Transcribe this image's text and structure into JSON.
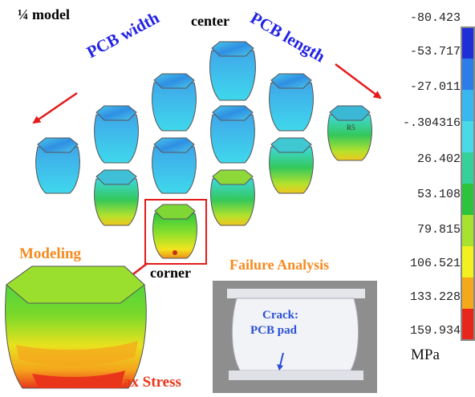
{
  "labels": {
    "quarter_model": "¼ model",
    "center": "center",
    "pcb_width": "PCB width",
    "pcb_length": "PCB length",
    "corner": "corner",
    "modeling": "Modeling",
    "failure_analysis": "Failure Analysis",
    "crack": "Crack:",
    "pcb_pad": "PCB pad",
    "max_stress": "Max Stress",
    "unit": "MPa",
    "chip_mark": "R5"
  },
  "legend": {
    "values": [
      "-80.423",
      "-53.717",
      "-27.011",
      "-.304316",
      "26.402",
      "53.108",
      "79.815",
      "106.521",
      "133.228",
      "159.934"
    ],
    "colors": [
      "#1f2fd8",
      "#2c7de8",
      "#38b8ee",
      "#4ad9e6",
      "#36d19a",
      "#2bc43c",
      "#a7e22e",
      "#f2f01e",
      "#f4a81c",
      "#e8271b"
    ]
  },
  "colors": {
    "orange_label": "#f58a1f",
    "blue_label": "#2323e6",
    "red_arrow": "#e41b1b"
  }
}
